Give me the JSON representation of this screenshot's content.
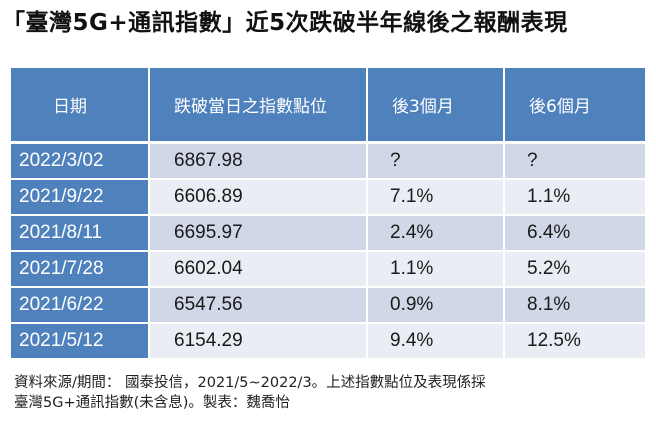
{
  "title": "「臺灣5G+通訊指數」近5次跌破半年線後之報酬表現",
  "table": {
    "headers": [
      "日期",
      "跌破當日之指數點位",
      "後3個月",
      "後6個月"
    ],
    "rows": [
      {
        "date": "2022/3/02",
        "index": "6867.98",
        "m3": "?",
        "m6": "?"
      },
      {
        "date": "2021/9/22",
        "index": "6606.89",
        "m3": "7.1%",
        "m6": "1.1%"
      },
      {
        "date": "2021/8/11",
        "index": "6695.97",
        "m3": "2.4%",
        "m6": "6.4%"
      },
      {
        "date": "2021/7/28",
        "index": "6602.04",
        "m3": "1.1%",
        "m6": "5.2%"
      },
      {
        "date": "2021/6/22",
        "index": "6547.56",
        "m3": "0.9%",
        "m6": "8.1%"
      },
      {
        "date": "2021/5/12",
        "index": "6154.29",
        "m3": "9.4%",
        "m6": "12.5%"
      }
    ]
  },
  "footnote": {
    "line1": "資料來源/期間： 國泰投信，2021/5~2022/3。上述指數點位及表現係採",
    "line2": "臺灣5G+通訊指數(未含息)。製表：魏喬怡"
  },
  "colors": {
    "header_blue": "#4f81bd",
    "row_light": "#e9edf4",
    "row_mid": "#d0d8e8"
  }
}
